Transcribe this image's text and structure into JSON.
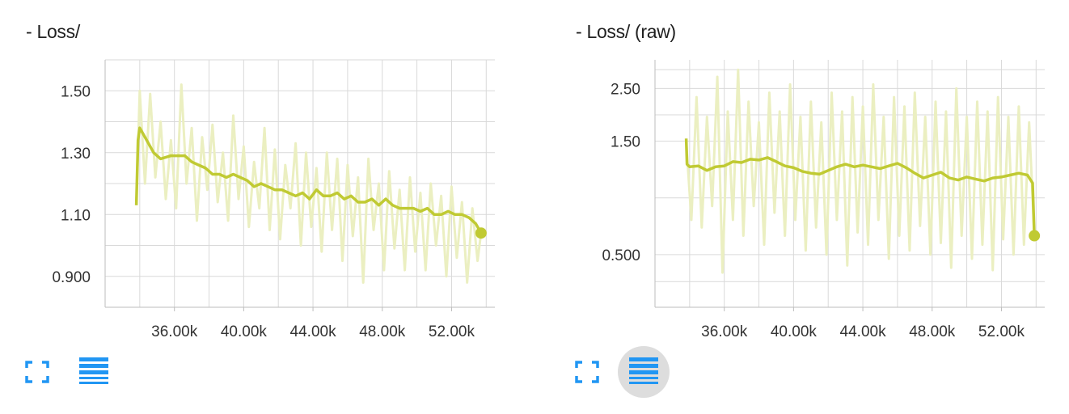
{
  "colors": {
    "series": "#c0ca33",
    "raw": "#ebefc1",
    "grid": "#d9d9d9",
    "axis": "#bdbdbd",
    "icon": "#2196f3",
    "button_bg": "#dddddd"
  },
  "icons": {
    "expand": "fullscreen-icon",
    "log": "list-icon"
  },
  "chart_data": [
    {
      "type": "line",
      "title": "- Loss/",
      "xlabel": "",
      "ylabel": "",
      "x_ticks": [
        36000,
        40000,
        44000,
        48000,
        52000
      ],
      "x_tick_labels": [
        "36.00k",
        "40.00k",
        "44.00k",
        "48.00k",
        "52.00k"
      ],
      "y_ticks": [
        0.9,
        1.1,
        1.3,
        1.5
      ],
      "y_tick_labels": [
        "0.900",
        "1.10",
        "1.30",
        "1.50"
      ],
      "xlim": [
        32000,
        54500
      ],
      "ylim": [
        0.8,
        1.6
      ],
      "grid": true,
      "log_y": false,
      "series": [
        {
          "style": "smoothed",
          "x": [
            33800,
            33900,
            34000,
            34400,
            34800,
            35200,
            35800,
            36200,
            36600,
            37000,
            37400,
            37800,
            38200,
            38600,
            39000,
            39400,
            39800,
            40200,
            40600,
            41000,
            41400,
            41800,
            42200,
            42600,
            43000,
            43400,
            43800,
            44200,
            44600,
            45000,
            45400,
            45800,
            46200,
            46600,
            47000,
            47400,
            47800,
            48200,
            48600,
            49000,
            49400,
            49800,
            50200,
            50600,
            51000,
            51400,
            51800,
            52200,
            52600,
            53000,
            53400,
            53700
          ],
          "y": [
            1.13,
            1.34,
            1.38,
            1.34,
            1.3,
            1.28,
            1.29,
            1.29,
            1.29,
            1.27,
            1.26,
            1.25,
            1.23,
            1.23,
            1.22,
            1.23,
            1.22,
            1.21,
            1.19,
            1.2,
            1.19,
            1.18,
            1.18,
            1.17,
            1.16,
            1.17,
            1.15,
            1.18,
            1.16,
            1.16,
            1.17,
            1.15,
            1.16,
            1.14,
            1.14,
            1.15,
            1.13,
            1.15,
            1.13,
            1.12,
            1.12,
            1.12,
            1.11,
            1.12,
            1.1,
            1.1,
            1.11,
            1.1,
            1.1,
            1.09,
            1.07,
            1.04
          ]
        },
        {
          "style": "raw",
          "x": [
            33800,
            34000,
            34300,
            34600,
            34900,
            35200,
            35500,
            35800,
            36100,
            36400,
            36700,
            37000,
            37300,
            37600,
            37900,
            38200,
            38500,
            38800,
            39100,
            39400,
            39700,
            40000,
            40300,
            40600,
            40900,
            41200,
            41500,
            41800,
            42100,
            42400,
            42700,
            43000,
            43300,
            43600,
            43900,
            44200,
            44500,
            44800,
            45100,
            45400,
            45700,
            46000,
            46300,
            46600,
            46900,
            47200,
            47500,
            47800,
            48100,
            48400,
            48700,
            49000,
            49300,
            49600,
            49900,
            50200,
            50500,
            50800,
            51100,
            51400,
            51700,
            52000,
            52300,
            52600,
            52900,
            53200,
            53500,
            53700
          ],
          "y": [
            1.13,
            1.5,
            1.2,
            1.49,
            1.22,
            1.4,
            1.15,
            1.34,
            1.12,
            1.52,
            1.2,
            1.38,
            1.08,
            1.35,
            1.18,
            1.39,
            1.14,
            1.3,
            1.08,
            1.42,
            1.15,
            1.32,
            1.06,
            1.27,
            1.12,
            1.38,
            1.05,
            1.31,
            1.02,
            1.26,
            1.12,
            1.33,
            1.0,
            1.3,
            1.06,
            1.25,
            0.98,
            1.3,
            1.05,
            1.28,
            0.95,
            1.26,
            1.03,
            1.22,
            0.88,
            1.28,
            1.05,
            1.2,
            0.92,
            1.24,
            0.99,
            1.18,
            0.92,
            1.22,
            0.98,
            1.17,
            0.92,
            1.2,
            1.0,
            1.16,
            0.9,
            1.19,
            0.96,
            1.14,
            0.88,
            1.12,
            0.95,
            1.04
          ]
        }
      ]
    },
    {
      "type": "line",
      "title": "- Loss/ (raw)",
      "xlabel": "",
      "ylabel": "",
      "x_ticks": [
        36000,
        40000,
        44000,
        48000,
        52000
      ],
      "x_tick_labels": [
        "36.00k",
        "40.00k",
        "44.00k",
        "48.00k",
        "52.00k"
      ],
      "y_ticks": [
        0.5,
        1.5,
        2.5
      ],
      "y_tick_labels": [
        "0.500",
        "1.50",
        "2.50"
      ],
      "xlim": [
        32000,
        54500
      ],
      "ylim": [
        0.3,
        3.3
      ],
      "grid": true,
      "log_y": true,
      "series": [
        {
          "style": "smoothed",
          "x": [
            33800,
            33850,
            34000,
            34500,
            35000,
            35500,
            36000,
            36500,
            37000,
            37500,
            38000,
            38500,
            39000,
            39500,
            40000,
            40500,
            41000,
            41500,
            42000,
            42500,
            43000,
            43500,
            44000,
            44500,
            45000,
            45500,
            46000,
            46500,
            47000,
            47500,
            48000,
            48500,
            49000,
            49500,
            50000,
            50500,
            51000,
            51500,
            52000,
            52500,
            53000,
            53500,
            53800,
            53900
          ],
          "y": [
            1.54,
            1.2,
            1.17,
            1.18,
            1.13,
            1.17,
            1.18,
            1.23,
            1.22,
            1.26,
            1.25,
            1.28,
            1.23,
            1.18,
            1.16,
            1.12,
            1.1,
            1.09,
            1.13,
            1.17,
            1.2,
            1.17,
            1.19,
            1.17,
            1.15,
            1.18,
            1.21,
            1.16,
            1.1,
            1.05,
            1.08,
            1.11,
            1.05,
            1.03,
            1.06,
            1.04,
            1.02,
            1.05,
            1.06,
            1.08,
            1.1,
            1.08,
            1.0,
            0.6
          ]
        },
        {
          "style": "raw",
          "x": [
            33800,
            34100,
            34400,
            34700,
            35000,
            35300,
            35600,
            35900,
            36200,
            36500,
            36800,
            37100,
            37400,
            37700,
            38000,
            38300,
            38600,
            38900,
            39200,
            39500,
            39800,
            40100,
            40400,
            40700,
            41000,
            41300,
            41600,
            41900,
            42200,
            42500,
            42800,
            43100,
            43400,
            43700,
            44000,
            44300,
            44600,
            44900,
            45200,
            45500,
            45800,
            46100,
            46400,
            46700,
            47000,
            47300,
            47600,
            47900,
            48200,
            48500,
            48800,
            49100,
            49400,
            49700,
            50000,
            50300,
            50600,
            50900,
            51200,
            51500,
            51800,
            52100,
            52400,
            52700,
            53000,
            53300,
            53600,
            53900
          ],
          "y": [
            1.5,
            0.7,
            2.3,
            0.65,
            1.9,
            0.8,
            2.8,
            0.42,
            2.0,
            0.7,
            3.0,
            0.6,
            2.2,
            0.8,
            1.8,
            0.55,
            2.4,
            0.75,
            2.0,
            0.6,
            2.6,
            0.7,
            1.9,
            0.52,
            2.2,
            0.65,
            1.8,
            0.5,
            2.4,
            0.7,
            2.0,
            0.45,
            2.3,
            0.62,
            2.1,
            0.55,
            2.6,
            0.7,
            1.9,
            0.48,
            2.3,
            0.6,
            2.1,
            0.52,
            2.4,
            0.66,
            1.9,
            0.5,
            2.2,
            0.56,
            2.0,
            0.44,
            2.5,
            0.6,
            1.9,
            0.48,
            2.2,
            0.55,
            2.0,
            0.43,
            2.3,
            0.58,
            1.9,
            0.5,
            2.1,
            0.55,
            1.8,
            0.6
          ]
        }
      ]
    }
  ]
}
